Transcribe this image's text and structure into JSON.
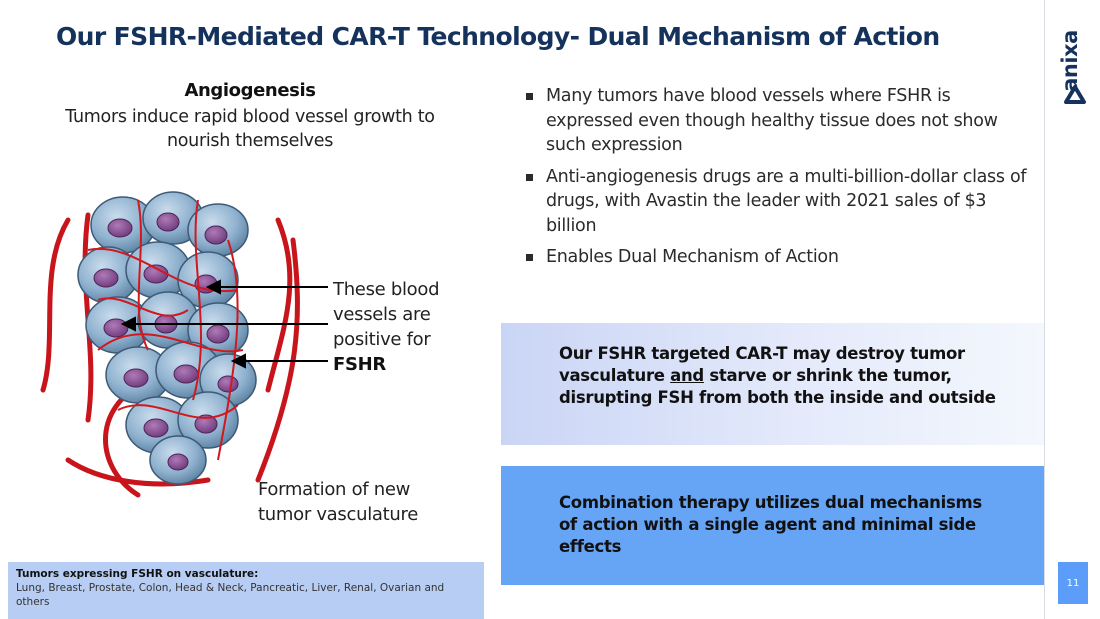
{
  "slide": {
    "title": "Our FSHR-Mediated CAR-T Technology- Dual Mechanism of Action",
    "page_number": "11"
  },
  "brand": {
    "logo_text": "anixa",
    "color": "#14325c",
    "accent": "#5b9df8"
  },
  "left_panel": {
    "heading": "Angiogenesis",
    "description": "Tumors induce rapid blood vessel growth to nourish themselves",
    "vessel_label_line1": "These blood",
    "vessel_label_line2": "vessels are",
    "vessel_label_line3": "positive for",
    "vessel_label_bold": "FSHR",
    "formation_label_line1": "Formation of new",
    "formation_label_line2": "tumor vasculature",
    "illustration": "tumor-cell-cluster-with-blood-vessels"
  },
  "bullets": [
    "Many tumors have blood vessels where FSHR is expressed even though healthy tissue does not show such expression",
    "Anti-angiogenesis drugs are a multi-billion-dollar class of drugs, with Avastin the leader with 2021 sales of $3 billion",
    "Enables Dual Mechanism of Action"
  ],
  "callout_1": {
    "text_before": "Our FSHR targeted CAR-T may destroy tumor vasculature ",
    "text_underlined": "and",
    "text_after": " starve or shrink the tumor, disrupting FSH from both the inside and outside"
  },
  "callout_2": {
    "text": "Combination therapy utilizes dual mechanisms of action with a single agent and minimal side effects"
  },
  "footnote": {
    "title": "Tumors expressing FSHR on vasculature:",
    "body": "Lung, Breast, Prostate, Colon, Head & Neck, Pancreatic, Liver, Renal, Ovarian and others"
  }
}
